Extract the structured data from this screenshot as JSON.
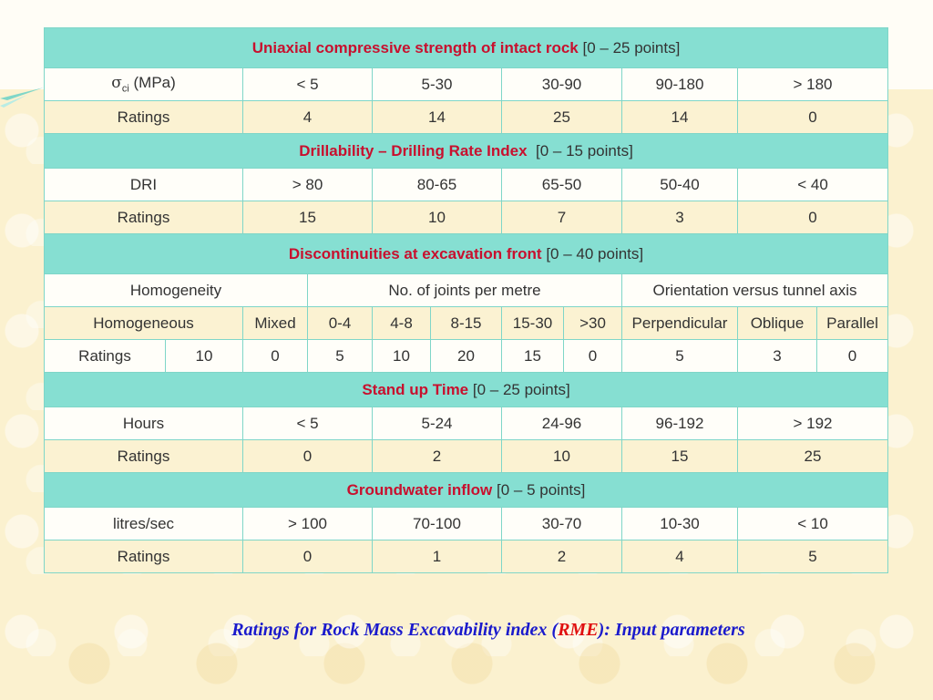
{
  "ucs": {
    "title": "Uniaxial compressive strength of intact rock",
    "points": "[0 – 25 points]",
    "param_symbol": "σ",
    "param_sub": "ci",
    "param_unit": "(MPa)",
    "classes": [
      "< 5",
      "5-30",
      "30-90",
      "90-180",
      "> 180"
    ],
    "ratings_label": "Ratings",
    "ratings": [
      "4",
      "14",
      "25",
      "14",
      "0"
    ]
  },
  "dri": {
    "title": "Drillability – Drilling Rate Index",
    "points": "[0 – 15 points]",
    "param": "DRI",
    "classes": [
      "> 80",
      "80-65",
      "65-50",
      "50-40",
      "< 40"
    ],
    "ratings_label": "Ratings",
    "ratings": [
      "15",
      "10",
      "7",
      "3",
      "0"
    ]
  },
  "disc": {
    "title": "Discontinuities at excavation front",
    "points": "[0 – 40 points]",
    "groups": [
      "Homogeneity",
      "No. of joints per metre",
      "Orientation versus  tunnel axis"
    ],
    "classes": [
      "Homogeneous",
      "Mixed",
      "0-4",
      "4-8",
      "8-15",
      "15-30",
      ">30",
      "Perpendicular",
      "Oblique",
      "Parallel"
    ],
    "ratings_label": "Ratings",
    "ratings": [
      "10",
      "0",
      "5",
      "10",
      "20",
      "15",
      "0",
      "5",
      "3",
      "0"
    ]
  },
  "sut": {
    "title": "Stand up Time",
    "points": "[0 – 25 points]",
    "param": "Hours",
    "classes": [
      "< 5",
      "5-24",
      "24-96",
      "96-192",
      "> 192"
    ],
    "ratings_label": "Ratings",
    "ratings": [
      "0",
      "2",
      "10",
      "15",
      "25"
    ]
  },
  "gw": {
    "title": "Groundwater inflow",
    "points": "[0 – 5 points]",
    "param": "litres/sec",
    "classes": [
      "> 100",
      "70-100",
      "30-70",
      "10-30",
      "< 10"
    ],
    "ratings_label": "Ratings",
    "ratings": [
      "0",
      "1",
      "2",
      "4",
      "5"
    ]
  },
  "caption": {
    "before": "Ratings for Rock Mass Excavability index (",
    "acronym": "RME",
    "after": "):   Input parameters"
  }
}
